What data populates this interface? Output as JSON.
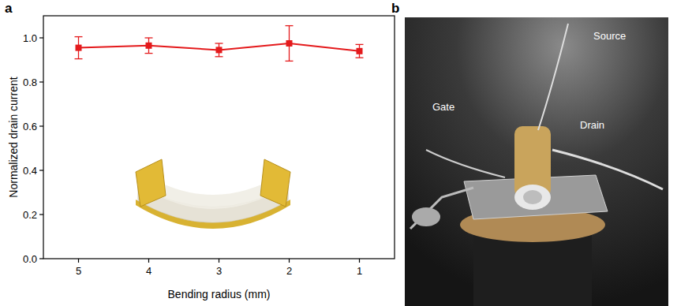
{
  "chart_data": {
    "type": "line",
    "panel_label": "a",
    "x_label": "Bending radius (mm)",
    "y_label": "Normalized drain current",
    "x": [
      5,
      4,
      3,
      2,
      1
    ],
    "series": [
      {
        "color": "#e41a1c",
        "marker": "square",
        "line_style": "solid",
        "values": [
          0.955,
          0.965,
          0.945,
          0.975,
          0.94
        ],
        "errors": [
          0.05,
          0.035,
          0.03,
          0.08,
          0.03
        ]
      }
    ],
    "xlim": [
      5.5,
      0.5
    ],
    "xticks": [
      5,
      4,
      3,
      2,
      1
    ],
    "ylim": [
      0,
      1.1
    ],
    "yticks": [
      {
        "value": 0,
        "label": "0.0"
      },
      {
        "value": 0.2,
        "label": "0.2"
      },
      {
        "value": 0.4,
        "label": "0.4"
      },
      {
        "value": 0.6,
        "label": "0.6"
      },
      {
        "value": 0.8,
        "label": "0.8"
      },
      {
        "value": 1.0,
        "label": "1.0"
      }
    ],
    "grid": false
  },
  "photo": {
    "panel_label": "b",
    "labels": [
      "Source",
      "Gate",
      "Drain"
    ]
  }
}
